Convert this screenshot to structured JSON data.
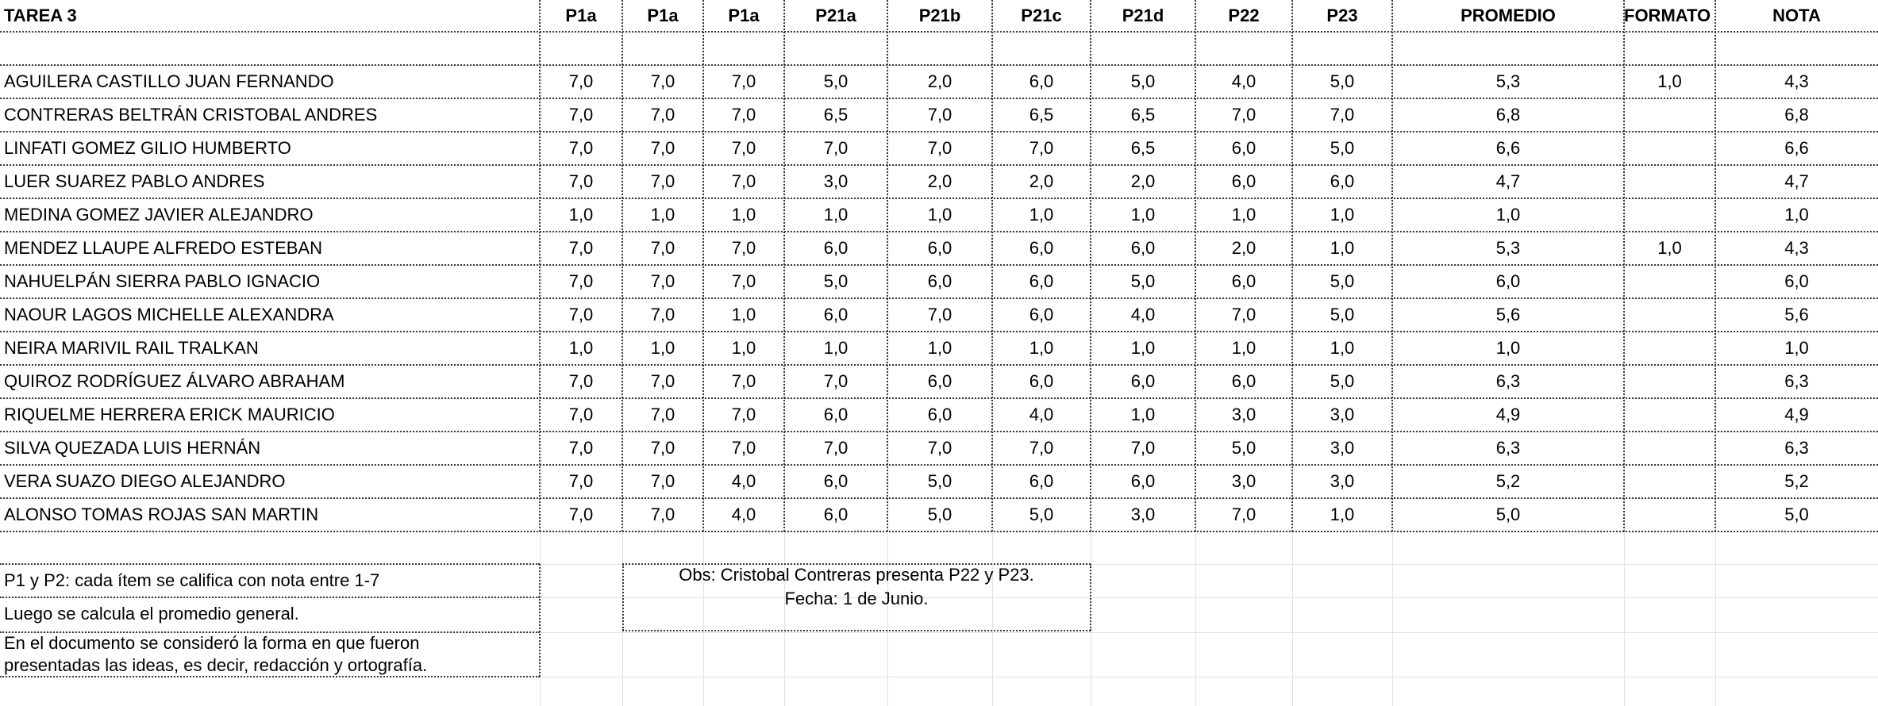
{
  "sheet": {
    "headers": [
      "TAREA 3",
      "P1a",
      "P1a",
      "P1a",
      "P21a",
      "P21b",
      "P21c",
      "P21d",
      "P22",
      "P23",
      "PROMEDIO",
      "FORMATO (-)",
      "NOTA"
    ],
    "rows": [
      [
        "AGUILERA CASTILLO JUAN FERNANDO",
        "7,0",
        "7,0",
        "7,0",
        "5,0",
        "2,0",
        "6,0",
        "5,0",
        "4,0",
        "5,0",
        "5,3",
        "1,0",
        "4,3"
      ],
      [
        "CONTRERAS BELTRÁN CRISTOBAL ANDRES",
        "7,0",
        "7,0",
        "7,0",
        "6,5",
        "7,0",
        "6,5",
        "6,5",
        "7,0",
        "7,0",
        "6,8",
        "",
        "6,8"
      ],
      [
        "LINFATI GOMEZ GILIO HUMBERTO",
        "7,0",
        "7,0",
        "7,0",
        "7,0",
        "7,0",
        "7,0",
        "6,5",
        "6,0",
        "5,0",
        "6,6",
        "",
        "6,6"
      ],
      [
        "LUER SUAREZ PABLO ANDRES",
        "7,0",
        "7,0",
        "7,0",
        "3,0",
        "2,0",
        "2,0",
        "2,0",
        "6,0",
        "6,0",
        "4,7",
        "",
        "4,7"
      ],
      [
        "MEDINA GOMEZ JAVIER ALEJANDRO",
        "1,0",
        "1,0",
        "1,0",
        "1,0",
        "1,0",
        "1,0",
        "1,0",
        "1,0",
        "1,0",
        "1,0",
        "",
        "1,0"
      ],
      [
        "MENDEZ LLAUPE ALFREDO ESTEBAN",
        "7,0",
        "7,0",
        "7,0",
        "6,0",
        "6,0",
        "6,0",
        "6,0",
        "2,0",
        "1,0",
        "5,3",
        "1,0",
        "4,3"
      ],
      [
        "NAHUELPÁN SIERRA PABLO IGNACIO",
        "7,0",
        "7,0",
        "7,0",
        "5,0",
        "6,0",
        "6,0",
        "5,0",
        "6,0",
        "5,0",
        "6,0",
        "",
        "6,0"
      ],
      [
        "NAOUR LAGOS MICHELLE ALEXANDRA",
        "7,0",
        "7,0",
        "1,0",
        "6,0",
        "7,0",
        "6,0",
        "4,0",
        "7,0",
        "5,0",
        "5,6",
        "",
        "5,6"
      ],
      [
        "NEIRA MARIVIL RAIL TRALKAN",
        "1,0",
        "1,0",
        "1,0",
        "1,0",
        "1,0",
        "1,0",
        "1,0",
        "1,0",
        "1,0",
        "1,0",
        "",
        "1,0"
      ],
      [
        "QUIROZ RODRÍGUEZ ÁLVARO ABRAHAM",
        "7,0",
        "7,0",
        "7,0",
        "7,0",
        "6,0",
        "6,0",
        "6,0",
        "6,0",
        "5,0",
        "6,3",
        "",
        "6,3"
      ],
      [
        "RIQUELME HERRERA ERICK MAURICIO",
        "7,0",
        "7,0",
        "7,0",
        "6,0",
        "6,0",
        "4,0",
        "1,0",
        "3,0",
        "3,0",
        "4,9",
        "",
        "4,9"
      ],
      [
        "SILVA QUEZADA LUIS HERNÁN",
        "7,0",
        "7,0",
        "7,0",
        "7,0",
        "7,0",
        "7,0",
        "7,0",
        "5,0",
        "3,0",
        "6,3",
        "",
        "6,3"
      ],
      [
        "VERA SUAZO DIEGO ALEJANDRO",
        "7,0",
        "7,0",
        "4,0",
        "6,0",
        "5,0",
        "6,0",
        "6,0",
        "3,0",
        "3,0",
        "5,2",
        "",
        "5,2"
      ],
      [
        "ALONSO TOMAS ROJAS SAN MARTIN",
        "7,0",
        "7,0",
        "4,0",
        "6,0",
        "5,0",
        "5,0",
        "3,0",
        "7,0",
        "1,0",
        "5,0",
        "",
        "5,0"
      ]
    ]
  },
  "notes": {
    "line1": "P1 y P2: cada ítem se califica con nota entre 1-7",
    "line2": "Luego se calcula el promedio general.",
    "line3a": "En el documento se consideró la forma en que fueron",
    "line3b": "presentadas las ideas, es decir, redacción y ortografía.",
    "obs_line1": "Obs: Cristobal Contreras presenta P22 y P23.",
    "obs_line2": "Fecha: 1 de Junio."
  }
}
